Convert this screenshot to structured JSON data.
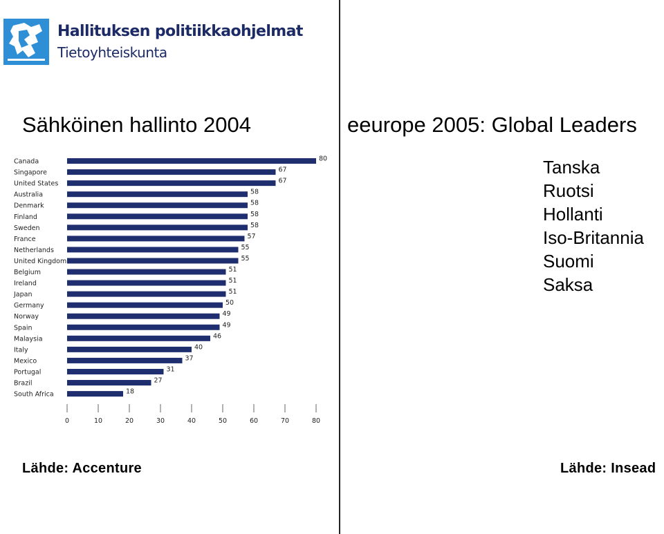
{
  "logo": {
    "line1": "Hallituksen politiikkaohjelmat",
    "line2": "Tietoyhteiskunta",
    "colors": {
      "box": "#2e8fd6",
      "text": "#1c2b66"
    }
  },
  "left": {
    "title": "Sähköinen hallinto 2004",
    "source": "Lähde: Accenture"
  },
  "right": {
    "title": "eeurope 2005: Global Leaders",
    "leaders": [
      "Tanska",
      "Ruotsi",
      "Hollanti",
      "Iso-Britannia",
      "Suomi",
      "Saksa"
    ],
    "source": "Lähde: Insead"
  },
  "chart_data": {
    "type": "bar",
    "orientation": "horizontal",
    "title": "",
    "xlabel": "",
    "ylabel": "",
    "categories": [
      "Canada",
      "Singapore",
      "United States",
      "Australia",
      "Denmark",
      "Finland",
      "Sweden",
      "France",
      "Netherlands",
      "United Kingdom",
      "Belgium",
      "Ireland",
      "Japan",
      "Germany",
      "Norway",
      "Spain",
      "Malaysia",
      "Italy",
      "Mexico",
      "Portugal",
      "Brazil",
      "South Africa"
    ],
    "values": [
      80,
      67,
      67,
      58,
      58,
      58,
      58,
      57,
      55,
      55,
      51,
      51,
      51,
      50,
      49,
      49,
      46,
      40,
      37,
      31,
      27,
      18
    ],
    "xlim": [
      0,
      80
    ],
    "ticks": [
      0,
      10,
      20,
      30,
      40,
      50,
      60,
      70,
      80
    ],
    "bar_color": "#1f2e6e",
    "grid": false,
    "data_labels": true
  }
}
